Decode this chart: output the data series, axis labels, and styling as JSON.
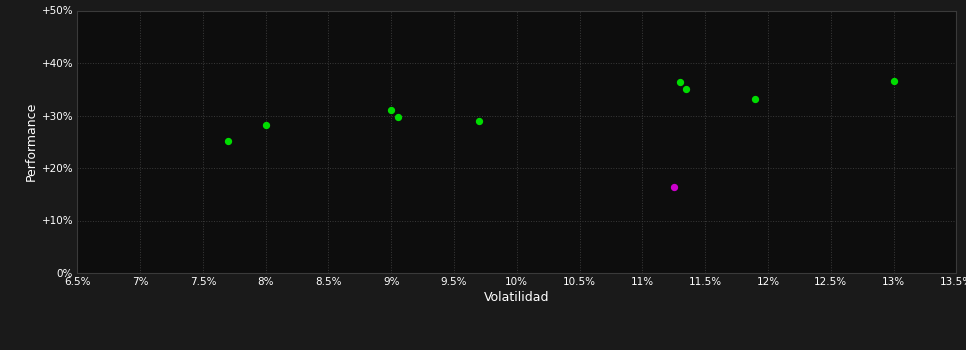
{
  "background_color": "#1a1a1a",
  "plot_bg_color": "#0d0d0d",
  "grid_color": "#3a3a3a",
  "text_color": "#ffffff",
  "xlabel": "Volatilidad",
  "ylabel": "Performance",
  "xlim": [
    0.065,
    0.135
  ],
  "ylim": [
    0.0,
    0.5
  ],
  "xticks": [
    0.065,
    0.07,
    0.075,
    0.08,
    0.085,
    0.09,
    0.095,
    0.1,
    0.105,
    0.11,
    0.115,
    0.12,
    0.125,
    0.13,
    0.135
  ],
  "xtick_labels": [
    "6.5%",
    "7%",
    "7.5%",
    "8%",
    "8.5%",
    "9%",
    "9.5%",
    "10%",
    "10.5%",
    "11%",
    "11.5%",
    "12%",
    "12.5%",
    "13%",
    "13.5%"
  ],
  "yticks": [
    0.0,
    0.1,
    0.2,
    0.3,
    0.4,
    0.5
  ],
  "ytick_labels": [
    "0%",
    "+10%",
    "+20%",
    "+30%",
    "+40%",
    "+50%"
  ],
  "green_points": [
    [
      0.077,
      0.251
    ],
    [
      0.08,
      0.282
    ],
    [
      0.09,
      0.31
    ],
    [
      0.0905,
      0.298
    ],
    [
      0.097,
      0.289
    ],
    [
      0.113,
      0.363
    ],
    [
      0.1135,
      0.35
    ],
    [
      0.119,
      0.332
    ],
    [
      0.13,
      0.365
    ]
  ],
  "magenta_points": [
    [
      0.1125,
      0.163
    ]
  ],
  "green_color": "#00dd00",
  "magenta_color": "#cc00cc",
  "dot_size": 18,
  "figsize": [
    9.66,
    3.5
  ],
  "dpi": 100
}
